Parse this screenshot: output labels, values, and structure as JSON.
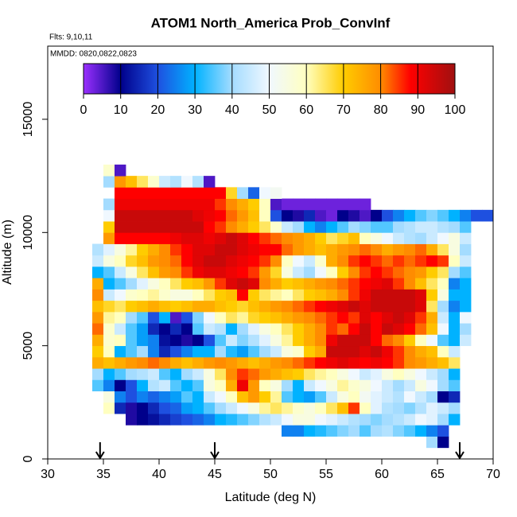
{
  "chart_data": {
    "type": "heatmap",
    "title": "ATOM1 North_America Prob_ConvInf",
    "subtitle": "Flts: 9,10,11",
    "annotation": "MMDD: 0820,0822,0823",
    "xlabel": "Latitude (deg N)",
    "ylabel": "Altitude (m)",
    "xlim": [
      30,
      70
    ],
    "ylim": [
      0,
      18230
    ],
    "xticks": [
      30,
      35,
      40,
      45,
      50,
      55,
      60,
      65,
      70
    ],
    "yticks": [
      0,
      5000,
      10000,
      15000
    ],
    "colorbar_ticks": [
      0,
      10,
      20,
      30,
      40,
      50,
      60,
      70,
      80,
      90,
      100
    ],
    "colorscale": [
      [
        0,
        "#9b30ff"
      ],
      [
        10,
        "#00008b"
      ],
      [
        20,
        "#1e50e0"
      ],
      [
        30,
        "#00b2ff"
      ],
      [
        40,
        "#a4dcff"
      ],
      [
        50,
        "#f0f8ff"
      ],
      [
        60,
        "#ffffc0"
      ],
      [
        70,
        "#ffcc00"
      ],
      [
        80,
        "#ff8c00"
      ],
      [
        88,
        "#ff0000"
      ],
      [
        100,
        "#a01010"
      ]
    ],
    "arrows_x": [
      34.7,
      45,
      67
    ],
    "x": [
      34.5,
      35.5,
      36.5,
      37.5,
      38.5,
      39.5,
      40.5,
      41.5,
      42.5,
      43.5,
      44.5,
      45.5,
      46.5,
      47.5,
      48.5,
      49.5,
      50.5,
      51.5,
      52.5,
      53.5,
      54.5,
      55.5,
      56.5,
      57.5,
      58.5,
      59.5,
      60.5,
      61.5,
      62.5,
      63.5,
      64.5,
      65.5,
      66.5,
      67.5,
      68.5,
      69.5
    ],
    "y": [
      750,
      1250,
      1750,
      2250,
      2750,
      3250,
      3750,
      4250,
      4750,
      5250,
      5750,
      6250,
      6750,
      7250,
      7750,
      8250,
      8750,
      9250,
      9750,
      10250,
      10750,
      11250,
      11750,
      12250,
      12750
    ],
    "z": [
      [
        null,
        null,
        null,
        null,
        null,
        null,
        null,
        null,
        null,
        null,
        null,
        null,
        null,
        null,
        null,
        null,
        null,
        null,
        null,
        null,
        null,
        null,
        null,
        null,
        null,
        null,
        null,
        null,
        null,
        null,
        40,
        10,
        null,
        null,
        null,
        null
      ],
      [
        null,
        null,
        null,
        null,
        null,
        null,
        null,
        null,
        null,
        null,
        null,
        null,
        null,
        null,
        null,
        null,
        null,
        25,
        25,
        30,
        32,
        35,
        38,
        40,
        35,
        40,
        42,
        38,
        35,
        30,
        25,
        20,
        null,
        null,
        null,
        null
      ],
      [
        null,
        null,
        null,
        8,
        10,
        12,
        15,
        18,
        20,
        22,
        25,
        30,
        32,
        35,
        38,
        42,
        45,
        50,
        55,
        55,
        50,
        48,
        45,
        42,
        40,
        38,
        40,
        42,
        45,
        50,
        48,
        40,
        30,
        null,
        null,
        null
      ],
      [
        null,
        60,
        15,
        8,
        10,
        15,
        20,
        22,
        28,
        30,
        35,
        40,
        45,
        50,
        55,
        62,
        65,
        62,
        58,
        55,
        60,
        65,
        72,
        85,
        60,
        48,
        42,
        40,
        38,
        42,
        48,
        45,
        40,
        null,
        null,
        null
      ],
      [
        null,
        55,
        25,
        20,
        25,
        22,
        25,
        28,
        35,
        30,
        45,
        50,
        60,
        72,
        78,
        70,
        62,
        35,
        30,
        28,
        35,
        45,
        55,
        60,
        52,
        48,
        45,
        42,
        50,
        45,
        40,
        10,
        15,
        null,
        null,
        null
      ],
      [
        35,
        25,
        10,
        20,
        30,
        42,
        45,
        35,
        30,
        35,
        55,
        60,
        75,
        90,
        78,
        60,
        55,
        40,
        30,
        45,
        50,
        55,
        62,
        58,
        55,
        50,
        45,
        40,
        45,
        55,
        50,
        40,
        35,
        null,
        null,
        null
      ],
      [
        40,
        30,
        35,
        40,
        42,
        45,
        35,
        30,
        40,
        45,
        55,
        65,
        80,
        85,
        82,
        78,
        75,
        72,
        70,
        65,
        62,
        60,
        55,
        50,
        45,
        48,
        55,
        60,
        55,
        50,
        45,
        40,
        30,
        null,
        null,
        null
      ],
      [
        75,
        72,
        75,
        78,
        80,
        82,
        80,
        75,
        72,
        75,
        78,
        80,
        78,
        75,
        72,
        75,
        78,
        80,
        82,
        85,
        88,
        90,
        92,
        90,
        88,
        90,
        88,
        85,
        80,
        78,
        75,
        72,
        65,
        null,
        null,
        null
      ],
      [
        70,
        60,
        30,
        35,
        40,
        25,
        15,
        20,
        25,
        30,
        30,
        40,
        32,
        28,
        35,
        40,
        45,
        55,
        58,
        70,
        75,
        95,
        95,
        95,
        92,
        95,
        90,
        85,
        80,
        75,
        72,
        60,
        45,
        null,
        null,
        null
      ],
      [
        75,
        58,
        60,
        35,
        28,
        25,
        12,
        10,
        8,
        10,
        20,
        35,
        45,
        38,
        42,
        48,
        55,
        62,
        70,
        75,
        80,
        90,
        95,
        95,
        95,
        88,
        82,
        80,
        70,
        60,
        50,
        35,
        30,
        45,
        null,
        null
      ],
      [
        82,
        58,
        45,
        35,
        28,
        15,
        10,
        15,
        10,
        35,
        45,
        42,
        30,
        40,
        48,
        55,
        60,
        65,
        70,
        75,
        80,
        85,
        82,
        88,
        95,
        88,
        95,
        92,
        88,
        82,
        72,
        50,
        30,
        40,
        null,
        null
      ],
      [
        78,
        62,
        60,
        40,
        35,
        20,
        30,
        5,
        20,
        38,
        50,
        60,
        65,
        62,
        68,
        70,
        72,
        75,
        78,
        80,
        82,
        85,
        88,
        85,
        92,
        88,
        92,
        95,
        92,
        85,
        75,
        45,
        30,
        50,
        null,
        null
      ],
      [
        72,
        68,
        65,
        70,
        72,
        75,
        72,
        70,
        72,
        75,
        75,
        72,
        70,
        68,
        72,
        75,
        78,
        80,
        82,
        85,
        88,
        90,
        92,
        95,
        92,
        95,
        95,
        95,
        95,
        92,
        65,
        40,
        25,
        30,
        null,
        null
      ],
      [
        80,
        45,
        50,
        58,
        60,
        62,
        58,
        55,
        55,
        60,
        65,
        70,
        72,
        88,
        70,
        65,
        62,
        60,
        65,
        70,
        72,
        75,
        80,
        85,
        90,
        95,
        95,
        95,
        95,
        92,
        70,
        55,
        30,
        30,
        null,
        null
      ],
      [
        75,
        30,
        35,
        40,
        48,
        55,
        60,
        65,
        70,
        72,
        78,
        85,
        92,
        95,
        92,
        80,
        75,
        70,
        72,
        75,
        78,
        80,
        82,
        85,
        88,
        90,
        92,
        85,
        80,
        72,
        65,
        60,
        25,
        30,
        null,
        null
      ],
      [
        30,
        35,
        45,
        55,
        65,
        72,
        78,
        80,
        85,
        90,
        92,
        92,
        90,
        88,
        85,
        78,
        68,
        55,
        45,
        40,
        50,
        60,
        70,
        80,
        85,
        88,
        85,
        82,
        80,
        78,
        70,
        65,
        40,
        35,
        null,
        null
      ],
      [
        45,
        55,
        60,
        68,
        72,
        78,
        80,
        82,
        88,
        92,
        95,
        95,
        92,
        90,
        88,
        85,
        80,
        60,
        50,
        45,
        58,
        75,
        80,
        85,
        88,
        85,
        82,
        85,
        82,
        85,
        88,
        85,
        60,
        45,
        null,
        null
      ],
      [
        42,
        48,
        55,
        62,
        70,
        75,
        80,
        85,
        88,
        92,
        92,
        95,
        95,
        92,
        90,
        88,
        88,
        82,
        78,
        75,
        72,
        75,
        78,
        80,
        82,
        80,
        75,
        78,
        80,
        82,
        75,
        65,
        55,
        40,
        null,
        null
      ],
      [
        null,
        78,
        88,
        88,
        88,
        88,
        88,
        90,
        92,
        92,
        90,
        92,
        95,
        92,
        88,
        85,
        82,
        80,
        78,
        75,
        70,
        65,
        68,
        72,
        60,
        55,
        50,
        45,
        42,
        40,
        45,
        50,
        55,
        45,
        null,
        null
      ],
      [
        null,
        70,
        95,
        95,
        95,
        95,
        95,
        95,
        95,
        95,
        88,
        85,
        80,
        75,
        70,
        65,
        58,
        45,
        40,
        30,
        25,
        30,
        35,
        40,
        38,
        35,
        35,
        40,
        42,
        45,
        45,
        42,
        40,
        35,
        null,
        null
      ],
      [
        null,
        50,
        95,
        95,
        95,
        95,
        95,
        95,
        95,
        92,
        90,
        88,
        82,
        78,
        72,
        60,
        20,
        10,
        8,
        15,
        5,
        3,
        10,
        8,
        5,
        10,
        20,
        25,
        30,
        35,
        38,
        35,
        30,
        25,
        20,
        20
      ],
      [
        null,
        40,
        90,
        90,
        90,
        90,
        90,
        90,
        90,
        90,
        90,
        85,
        80,
        75,
        70,
        60,
        5,
        3,
        3,
        3,
        3,
        3,
        3,
        3,
        3,
        null,
        null,
        null,
        null,
        null,
        null,
        null,
        null,
        null,
        null,
        null
      ],
      [
        null,
        null,
        88,
        88,
        88,
        88,
        88,
        88,
        88,
        88,
        88,
        88,
        68,
        40,
        22,
        50,
        52,
        null,
        null,
        null,
        null,
        null,
        null,
        null,
        null,
        null,
        null,
        null,
        null,
        null,
        null,
        null,
        null,
        null,
        null,
        null
      ],
      [
        null,
        40,
        78,
        72,
        65,
        58,
        45,
        42,
        50,
        42,
        5,
        null,
        null,
        null,
        null,
        null,
        null,
        null,
        null,
        null,
        null,
        null,
        null,
        null,
        null,
        null,
        null,
        null,
        null,
        null,
        null,
        null,
        null,
        null,
        null,
        null
      ],
      [
        null,
        58,
        5,
        null,
        null,
        null,
        null,
        null,
        null,
        null,
        null,
        null,
        null,
        null,
        null,
        null,
        null,
        null,
        null,
        null,
        null,
        null,
        null,
        null,
        null,
        null,
        null,
        null,
        null,
        null,
        null,
        null,
        null,
        null,
        null,
        null
      ]
    ]
  }
}
